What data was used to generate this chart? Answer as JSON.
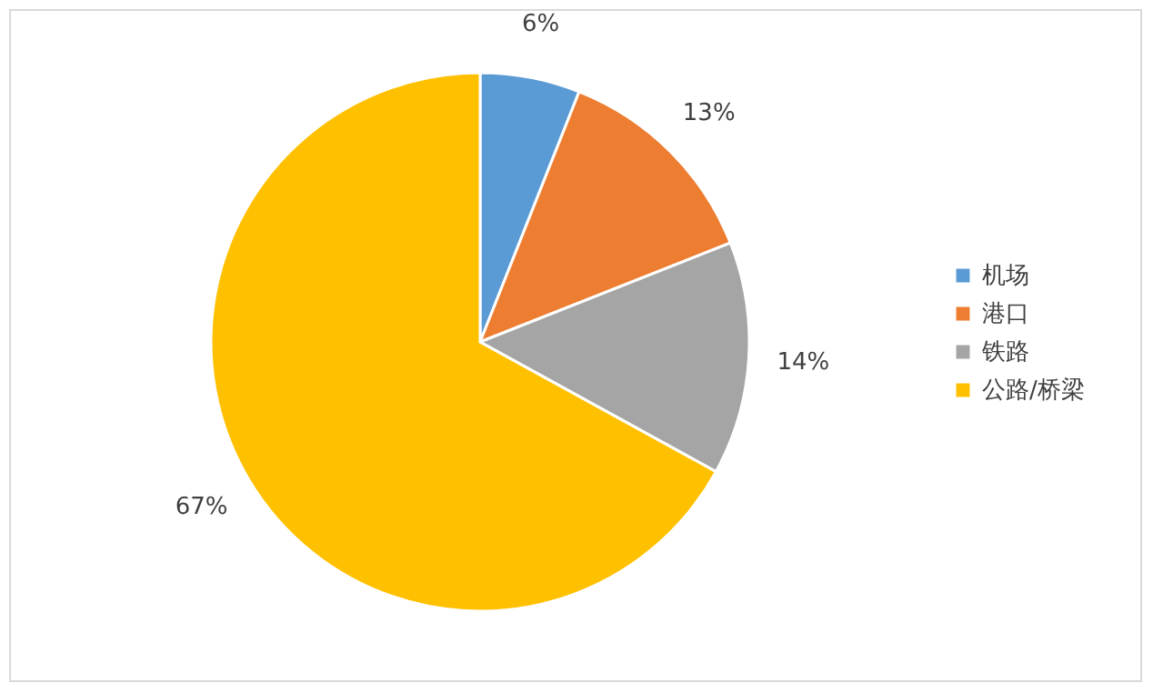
{
  "chart_data": {
    "type": "pie",
    "categories": [
      "机场",
      "港口",
      "铁路",
      "公路/桥梁"
    ],
    "values": [
      6,
      13,
      14,
      67
    ],
    "colors": [
      "#5b9bd5",
      "#ed7d31",
      "#a5a5a5",
      "#ffc000"
    ],
    "value_labels": [
      "6%",
      "13%",
      "14%",
      "67%"
    ],
    "legend": "right"
  }
}
